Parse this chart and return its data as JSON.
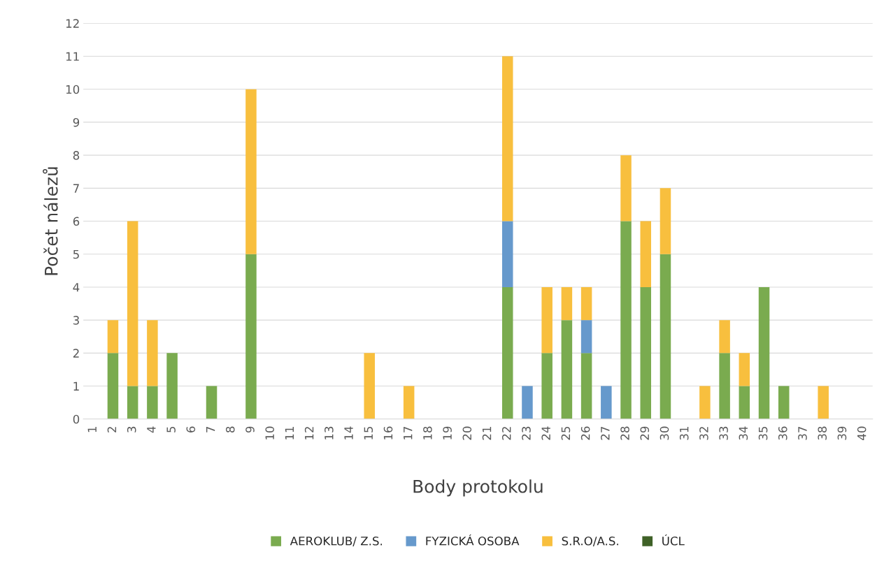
{
  "chart_data": {
    "type": "bar",
    "stacked": true,
    "xlabel": "Body protokolu",
    "ylabel": "Počet nálezů",
    "categories": [
      "1",
      "2",
      "3",
      "4",
      "5",
      "6",
      "7",
      "8",
      "9",
      "10",
      "11",
      "12",
      "13",
      "14",
      "15",
      "16",
      "17",
      "18",
      "19",
      "20",
      "21",
      "22",
      "23",
      "24",
      "25",
      "26",
      "27",
      "28",
      "29",
      "30",
      "31",
      "32",
      "33",
      "34",
      "35",
      "36",
      "37",
      "38",
      "39",
      "40"
    ],
    "series": [
      {
        "name": "AEROKLUB/ Z.S.",
        "color": "#7aab4f",
        "values": [
          0,
          2,
          1,
          1,
          2,
          0,
          1,
          0,
          5,
          0,
          0,
          0,
          0,
          0,
          0,
          0,
          0,
          0,
          0,
          0,
          0,
          4,
          0,
          2,
          3,
          2,
          0,
          6,
          4,
          5,
          0,
          0,
          2,
          1,
          4,
          1,
          0,
          0,
          0,
          0
        ]
      },
      {
        "name": "FYZICKÁ OSOBA",
        "color": "#6699cc",
        "values": [
          0,
          0,
          0,
          0,
          0,
          0,
          0,
          0,
          0,
          0,
          0,
          0,
          0,
          0,
          0,
          0,
          0,
          0,
          0,
          0,
          0,
          2,
          1,
          0,
          0,
          1,
          1,
          0,
          0,
          0,
          0,
          0,
          0,
          0,
          0,
          0,
          0,
          0,
          0,
          0
        ]
      },
      {
        "name": "S.R.O/A.S.",
        "color": "#f8bf3e",
        "values": [
          0,
          1,
          5,
          2,
          0,
          0,
          0,
          0,
          5,
          0,
          0,
          0,
          0,
          0,
          2,
          0,
          1,
          0,
          0,
          0,
          0,
          5,
          0,
          2,
          1,
          1,
          0,
          2,
          2,
          2,
          0,
          1,
          1,
          1,
          0,
          0,
          0,
          1,
          0,
          0
        ]
      },
      {
        "name": "ÚCL",
        "color": "#3f6127",
        "values": [
          0,
          0,
          0,
          0,
          0,
          0,
          0,
          0,
          0,
          0,
          0,
          0,
          0,
          0,
          0,
          0,
          0,
          0,
          0,
          0,
          0,
          0,
          0,
          0,
          0,
          0,
          0,
          0,
          0,
          0,
          0,
          0,
          0,
          0,
          0,
          0,
          0,
          0,
          0,
          0
        ]
      }
    ],
    "ylim": [
      0,
      12
    ],
    "yticks": [
      0,
      1,
      2,
      3,
      4,
      5,
      6,
      7,
      8,
      9,
      10,
      11,
      12
    ],
    "grid": "y",
    "legend": "bottom"
  }
}
